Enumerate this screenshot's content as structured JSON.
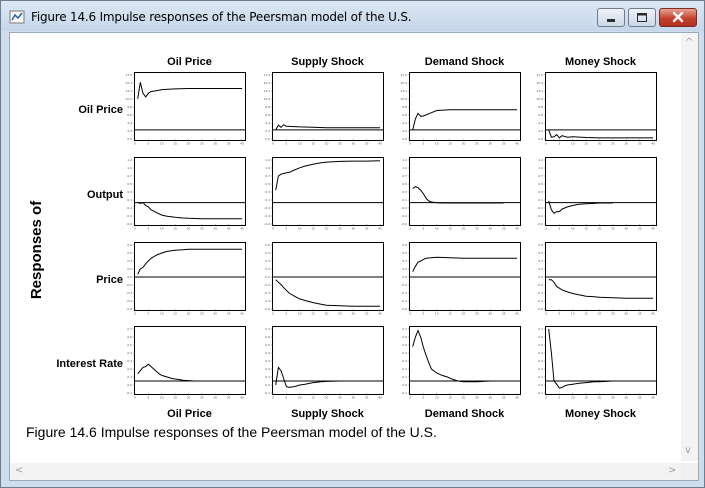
{
  "window": {
    "title": "Figure 14.6 Impulse responses of the Peersman model of the U.S.",
    "icon": "app-icon",
    "controls": [
      "minimize-icon",
      "maximize-icon",
      "close-icon"
    ]
  },
  "figure": {
    "y_axis_title": "Responses of",
    "caption": "Figure 14.6 Impulse responses of the Peersman model of the U.S."
  },
  "scrollbars": {
    "up_arrow": "^",
    "down_arrow": "v",
    "left_arrow": "<",
    "right_arrow": ">"
  },
  "chart_data": {
    "type": "line",
    "layout": "grid",
    "columns_top": [
      "Oil Price",
      "Supply Shock",
      "Demand Shock",
      "Money Shock"
    ],
    "columns_bottom": [
      "Oil Price",
      "Supply Shock",
      "Demand Shock",
      "Money Shock"
    ],
    "rows": [
      "Oil Price",
      "Output",
      "Price",
      "Interest Rate"
    ],
    "horizon": 40,
    "grid": false,
    "panels": [
      {
        "row": 0,
        "col": 0,
        "ylim": [
          0,
          17.5
        ],
        "baseline": 2.5,
        "x": [
          1,
          2,
          3,
          4,
          5,
          6,
          8,
          10,
          15,
          20,
          30,
          40
        ],
        "y": [
          11,
          15.5,
          12.5,
          11.5,
          12.5,
          13,
          13.2,
          13.5,
          13.7,
          13.8,
          13.8,
          13.8
        ]
      },
      {
        "row": 0,
        "col": 1,
        "ylim": [
          0,
          17.5
        ],
        "baseline": 2.5,
        "x": [
          1,
          2,
          3,
          4,
          5,
          8,
          10,
          15,
          20,
          30,
          40
        ],
        "y": [
          2.5,
          3.8,
          3.2,
          3.9,
          3.5,
          3.4,
          3.3,
          3.2,
          3.1,
          3.1,
          3.1
        ]
      },
      {
        "row": 0,
        "col": 2,
        "ylim": [
          0,
          17.5
        ],
        "baseline": 2.5,
        "x": [
          1,
          2,
          3,
          4,
          5,
          8,
          10,
          15,
          20,
          30,
          40
        ],
        "y": [
          2.5,
          5.5,
          7.0,
          6.2,
          6.3,
          7.2,
          7.8,
          8.0,
          8.0,
          8.0,
          8.0
        ]
      },
      {
        "row": 0,
        "col": 3,
        "ylim": [
          0,
          17.5
        ],
        "baseline": 2.5,
        "x": [
          1,
          2,
          3,
          4,
          5,
          6,
          8,
          10,
          15,
          20,
          30,
          40
        ],
        "y": [
          2.5,
          0.5,
          0.6,
          1.2,
          0.3,
          0.9,
          0.5,
          0.6,
          0.4,
          0.3,
          0.3,
          0.3
        ]
      },
      {
        "row": 1,
        "col": 0,
        "ylim": [
          -0.6,
          1.2
        ],
        "baseline": 0.0,
        "x": [
          1,
          2,
          3,
          4,
          5,
          6,
          8,
          10,
          12,
          15,
          18,
          20,
          25,
          30,
          35,
          40
        ],
        "y": [
          0.0,
          -0.02,
          0.0,
          -0.08,
          -0.12,
          -0.2,
          -0.28,
          -0.35,
          -0.38,
          -0.41,
          -0.43,
          -0.44,
          -0.45,
          -0.45,
          -0.45,
          -0.45
        ]
      },
      {
        "row": 1,
        "col": 1,
        "ylim": [
          -0.6,
          1.2
        ],
        "baseline": 0.0,
        "x": [
          1,
          2,
          3,
          4,
          5,
          6,
          8,
          10,
          12,
          15,
          18,
          20,
          25,
          30,
          35,
          40
        ],
        "y": [
          0.35,
          0.75,
          0.8,
          0.82,
          0.84,
          0.85,
          0.92,
          0.98,
          1.03,
          1.08,
          1.12,
          1.14,
          1.16,
          1.17,
          1.17,
          1.18
        ]
      },
      {
        "row": 1,
        "col": 2,
        "ylim": [
          -0.6,
          1.2
        ],
        "baseline": 0.0,
        "x": [
          1,
          2,
          3,
          4,
          5,
          6,
          7,
          8,
          10,
          12,
          15,
          20,
          25,
          30,
          35
        ],
        "y": [
          0.4,
          0.45,
          0.42,
          0.35,
          0.25,
          0.12,
          0.05,
          0.02,
          0.0,
          -0.01,
          -0.01,
          -0.01,
          -0.01,
          -0.01,
          -0.01
        ]
      },
      {
        "row": 1,
        "col": 3,
        "ylim": [
          -0.6,
          1.2
        ],
        "baseline": 0.0,
        "x": [
          1,
          2,
          3,
          4,
          5,
          6,
          8,
          10,
          12,
          15,
          18,
          20,
          25
        ],
        "y": [
          0.05,
          -0.2,
          -0.3,
          -0.25,
          -0.25,
          -0.18,
          -0.12,
          -0.08,
          -0.05,
          -0.03,
          -0.02,
          -0.01,
          -0.01
        ]
      },
      {
        "row": 2,
        "col": 0,
        "ylim": [
          -0.6,
          0.6
        ],
        "baseline": 0.0,
        "x": [
          1,
          2,
          3,
          4,
          5,
          6,
          8,
          10,
          12,
          15,
          18,
          20,
          25,
          30,
          35,
          40
        ],
        "y": [
          0.05,
          0.15,
          0.18,
          0.25,
          0.3,
          0.35,
          0.41,
          0.45,
          0.48,
          0.5,
          0.51,
          0.52,
          0.52,
          0.52,
          0.52,
          0.52
        ]
      },
      {
        "row": 2,
        "col": 1,
        "ylim": [
          -0.6,
          0.6
        ],
        "baseline": 0.0,
        "x": [
          1,
          2,
          3,
          4,
          5,
          6,
          8,
          10,
          12,
          15,
          18,
          20,
          25,
          30,
          35,
          40
        ],
        "y": [
          -0.05,
          -0.1,
          -0.14,
          -0.2,
          -0.25,
          -0.3,
          -0.36,
          -0.41,
          -0.44,
          -0.48,
          -0.51,
          -0.53,
          -0.54,
          -0.55,
          -0.55,
          -0.55
        ]
      },
      {
        "row": 2,
        "col": 2,
        "ylim": [
          -0.6,
          0.6
        ],
        "baseline": 0.0,
        "x": [
          1,
          2,
          3,
          4,
          5,
          6,
          8,
          10,
          15,
          20,
          25,
          30,
          35,
          40
        ],
        "y": [
          0.1,
          0.2,
          0.28,
          0.3,
          0.33,
          0.35,
          0.36,
          0.37,
          0.36,
          0.35,
          0.35,
          0.35,
          0.35,
          0.35
        ]
      },
      {
        "row": 2,
        "col": 3,
        "ylim": [
          -0.6,
          0.6
        ],
        "baseline": 0.0,
        "x": [
          1,
          2,
          3,
          4,
          5,
          6,
          8,
          10,
          12,
          15,
          18,
          20,
          25,
          30,
          35,
          40
        ],
        "y": [
          -0.05,
          -0.05,
          -0.1,
          -0.18,
          -0.21,
          -0.24,
          -0.28,
          -0.31,
          -0.33,
          -0.36,
          -0.37,
          -0.38,
          -0.39,
          -0.4,
          -0.4,
          -0.4
        ]
      },
      {
        "row": 3,
        "col": 0,
        "ylim": [
          -0.1,
          0.7
        ],
        "baseline": 0.05,
        "x": [
          1,
          2,
          3,
          4,
          5,
          6,
          7,
          8,
          9,
          10,
          12,
          14,
          16,
          18,
          20,
          22
        ],
        "y": [
          0.14,
          0.18,
          0.22,
          0.23,
          0.26,
          0.23,
          0.2,
          0.17,
          0.14,
          0.12,
          0.1,
          0.08,
          0.07,
          0.06,
          0.055,
          0.05
        ]
      },
      {
        "row": 3,
        "col": 1,
        "ylim": [
          -0.1,
          0.7
        ],
        "baseline": 0.05,
        "x": [
          1,
          2,
          3,
          4,
          5,
          6,
          8,
          10,
          12,
          15,
          18,
          20,
          25,
          30,
          35
        ],
        "y": [
          0.0,
          0.22,
          0.18,
          0.08,
          -0.02,
          -0.03,
          -0.02,
          0.0,
          0.01,
          0.03,
          0.04,
          0.045,
          0.05,
          0.05,
          0.05
        ]
      },
      {
        "row": 3,
        "col": 2,
        "ylim": [
          -0.1,
          0.7
        ],
        "baseline": 0.05,
        "x": [
          1,
          2,
          3,
          4,
          5,
          6,
          7,
          8,
          10,
          12,
          14,
          16,
          18,
          20,
          25,
          30
        ],
        "y": [
          0.48,
          0.6,
          0.68,
          0.6,
          0.47,
          0.37,
          0.28,
          0.2,
          0.15,
          0.12,
          0.1,
          0.07,
          0.05,
          0.04,
          0.04,
          0.05
        ]
      },
      {
        "row": 3,
        "col": 3,
        "ylim": [
          -0.1,
          0.7
        ],
        "baseline": 0.05,
        "x": [
          1,
          2,
          3,
          4,
          5,
          6,
          7,
          8,
          10,
          12,
          15,
          18,
          20,
          25,
          30
        ],
        "y": [
          0.7,
          0.4,
          0.05,
          0.01,
          -0.04,
          -0.03,
          -0.01,
          0.0,
          0.01,
          0.02,
          0.03,
          0.04,
          0.04,
          0.05,
          0.05
        ]
      }
    ]
  }
}
